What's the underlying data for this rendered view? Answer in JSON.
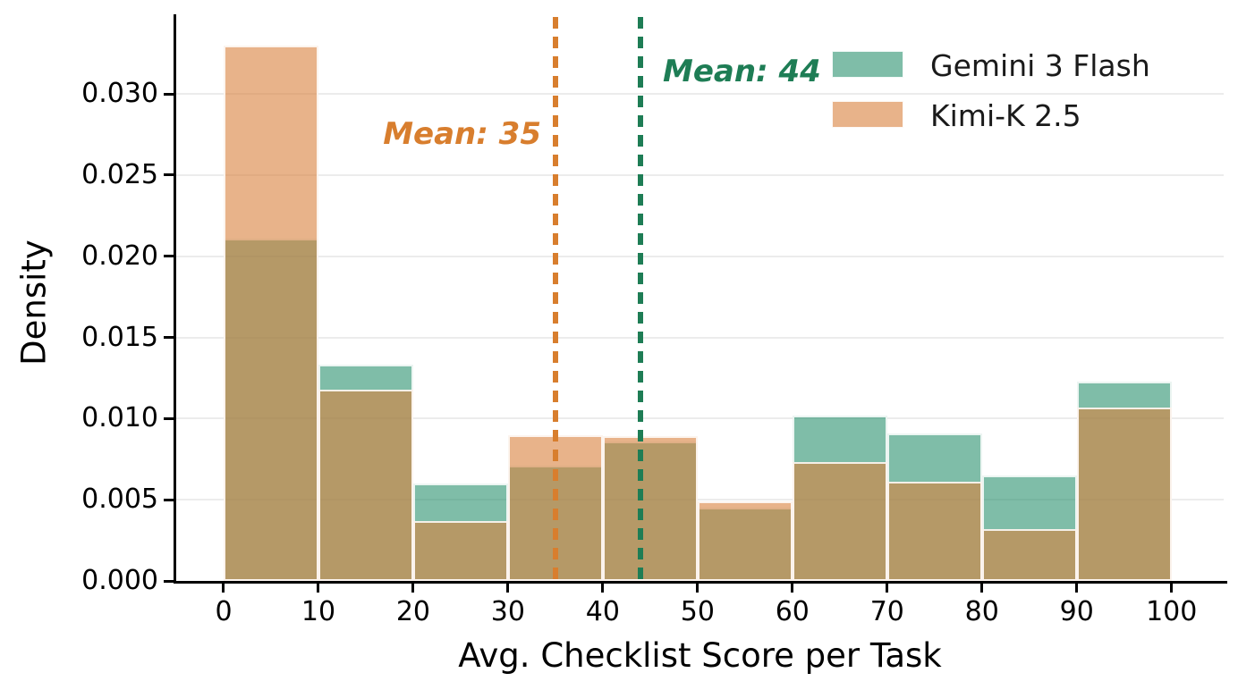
{
  "chart_data": {
    "type": "bar",
    "subtype": "overlapping-density-histogram",
    "xlabel": "Avg. Checklist Score per Task",
    "ylabel": "Density",
    "bin_edges": [
      0,
      10,
      20,
      30,
      40,
      50,
      60,
      70,
      80,
      90,
      100
    ],
    "x_ticks": [
      "0",
      "10",
      "20",
      "30",
      "40",
      "50",
      "60",
      "70",
      "80",
      "90",
      "100"
    ],
    "y_ticks": [
      "0.000",
      "0.005",
      "0.010",
      "0.015",
      "0.020",
      "0.025",
      "0.030"
    ],
    "xlim": [
      -5,
      105.5
    ],
    "ylim": [
      0,
      0.0348
    ],
    "grid": "horizontal-only",
    "background_color": "#ffffff",
    "legend_position": "upper-right",
    "series": [
      {
        "name": "Gemini 3 Flash",
        "fill_color": "rgba(42,145,110,0.6)",
        "swatch_color": "rgba(42,145,110,0.6)",
        "mean": 44,
        "mean_annotation": "Mean: 44",
        "mean_line_color": "#1e7d55",
        "annotation_color": "#1e7d55",
        "values": [
          0.0211,
          0.0133,
          0.006,
          0.0071,
          0.0086,
          0.0045,
          0.0102,
          0.0091,
          0.0065,
          0.0123
        ]
      },
      {
        "name": "Kimi-K 2.5",
        "fill_color": "rgba(217,129,60,0.6)",
        "swatch_color": "rgba(217,129,60,0.6)",
        "mean": 35,
        "mean_annotation": "Mean: 35",
        "mean_line_color": "#d87e2e",
        "annotation_color": "#d87e2e",
        "values": [
          0.033,
          0.0118,
          0.0037,
          0.009,
          0.0089,
          0.0049,
          0.0073,
          0.0061,
          0.0032,
          0.0107
        ]
      }
    ]
  }
}
